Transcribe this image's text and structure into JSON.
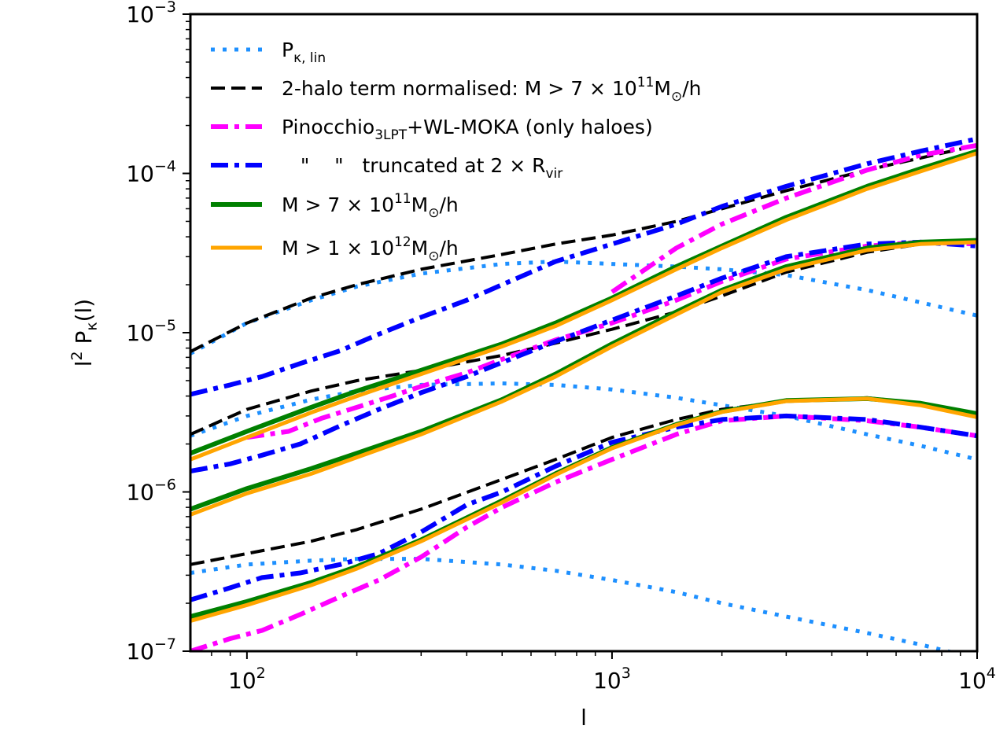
{
  "chart_data": {
    "type": "line",
    "xscale": "log",
    "yscale": "log",
    "xlim": [
      70,
      10000
    ],
    "ylim": [
      1e-07,
      0.001
    ],
    "grid": false,
    "legend_position": "top-left",
    "xlabel": "l",
    "ylabel": {
      "base": "l",
      "sup": "2",
      "mid": " P",
      "sub": "κ",
      "tail": "(l)"
    },
    "x_ticks": [
      {
        "value": 100,
        "base": "10",
        "exp": "2"
      },
      {
        "value": 1000,
        "base": "10",
        "exp": "3"
      },
      {
        "value": 10000,
        "base": "10",
        "exp": "4"
      }
    ],
    "y_ticks": [
      {
        "value": 1e-07,
        "base": "10",
        "exp": "−7"
      },
      {
        "value": 1e-06,
        "base": "10",
        "exp": "−6"
      },
      {
        "value": 1e-05,
        "base": "10",
        "exp": "−5"
      },
      {
        "value": 0.0001,
        "base": "10",
        "exp": "−4"
      },
      {
        "value": 0.001,
        "base": "10",
        "exp": "−3"
      }
    ],
    "legend": [
      {
        "key": "lin",
        "parts": [
          {
            "t": "P"
          },
          {
            "t": "κ, lin",
            "sub": true
          }
        ]
      },
      {
        "key": "twohalo",
        "parts": [
          {
            "t": "2-halo term normalised: M > 7 × 10"
          },
          {
            "t": "11",
            "sup": true
          },
          {
            "t": "M"
          },
          {
            "t": "⊙",
            "sub": true
          },
          {
            "t": "/h"
          }
        ]
      },
      {
        "key": "pino",
        "parts": [
          {
            "t": "Pinocchio"
          },
          {
            "t": "3LPT",
            "sub": true
          },
          {
            "t": "+WL-MOKA (only haloes)"
          }
        ]
      },
      {
        "key": "trunc",
        "parts": [
          {
            "t": "   \"    \"   truncated at 2 × R"
          },
          {
            "t": "vir",
            "sub": true
          }
        ]
      },
      {
        "key": "m7",
        "parts": [
          {
            "t": "M > 7 × 10"
          },
          {
            "t": "11",
            "sup": true
          },
          {
            "t": "M"
          },
          {
            "t": "⊙",
            "sub": true
          },
          {
            "t": "/h"
          }
        ]
      },
      {
        "key": "m1",
        "parts": [
          {
            "t": "M > 1 × 10"
          },
          {
            "t": "12",
            "sup": true
          },
          {
            "t": "M"
          },
          {
            "t": "⊙",
            "sub": true
          },
          {
            "t": "/h"
          }
        ]
      }
    ],
    "styles": {
      "lin": {
        "color": "#1e90ff",
        "width": 5,
        "dash": "5 10",
        "cap": "butt"
      },
      "twohalo": {
        "color": "#000000",
        "width": 4,
        "dash": "18 8",
        "cap": "butt"
      },
      "pino": {
        "color": "#ff00ff",
        "width": 6,
        "dash": "22 8 6 8",
        "cap": "butt"
      },
      "trunc": {
        "color": "#0000ff",
        "width": 6,
        "dash": "22 8 6 8",
        "cap": "butt"
      },
      "m7": {
        "color": "#008000",
        "width": 6,
        "dash": "",
        "cap": "butt"
      },
      "m1": {
        "color": "#ffa500",
        "width": 5,
        "dash": "",
        "cap": "butt"
      }
    },
    "series": [
      {
        "group": "upper",
        "key": "lin",
        "x": [
          70,
          100,
          150,
          200,
          300,
          500,
          700,
          1000,
          1500,
          2000,
          3000,
          5000,
          7000,
          10000
        ],
        "y": [
          7.4e-06,
          1.15e-05,
          1.6e-05,
          1.95e-05,
          2.35e-05,
          2.7e-05,
          2.8e-05,
          2.7e-05,
          2.6e-05,
          2.5e-05,
          2.3e-05,
          1.85e-05,
          1.55e-05,
          1.28e-05
        ]
      },
      {
        "group": "upper",
        "key": "twohalo",
        "x": [
          70,
          100,
          150,
          200,
          300,
          500,
          700,
          1000,
          1500,
          2000,
          3000,
          5000,
          7000,
          10000
        ],
        "y": [
          7.6e-06,
          1.15e-05,
          1.65e-05,
          2e-05,
          2.5e-05,
          3.1e-05,
          3.6e-05,
          4.1e-05,
          5e-05,
          6e-05,
          7.8e-05,
          0.000105,
          0.000125,
          0.00015
        ]
      },
      {
        "group": "upper",
        "key": "trunc",
        "x": [
          70,
          90,
          110,
          140,
          180,
          230,
          300,
          400,
          500,
          700,
          1000,
          1500,
          2000,
          3000,
          5000,
          7000,
          10000
        ],
        "y": [
          4.1e-06,
          4.7e-06,
          5.3e-06,
          6.4e-06,
          7.7e-06,
          9.8e-06,
          1.25e-05,
          1.6e-05,
          2e-05,
          2.8e-05,
          3.6e-05,
          4.8e-05,
          6.2e-05,
          8.3e-05,
          0.000115,
          0.000138,
          0.000165
        ]
      },
      {
        "group": "upper",
        "key": "pino",
        "x": [
          1000,
          1500,
          2000,
          3000,
          5000,
          7000,
          10000
        ],
        "y": [
          1.8e-05,
          3.4e-05,
          4.8e-05,
          7e-05,
          0.000105,
          0.00013,
          0.00015
        ]
      },
      {
        "group": "upper",
        "key": "m7",
        "x": [
          70,
          100,
          150,
          200,
          300,
          500,
          700,
          1000,
          1500,
          2000,
          3000,
          5000,
          7000,
          10000
        ],
        "y": [
          1.75e-06,
          2.4e-06,
          3.4e-06,
          4.3e-06,
          5.8e-06,
          8.5e-06,
          1.15e-05,
          1.65e-05,
          2.6e-05,
          3.5e-05,
          5.3e-05,
          8.3e-05,
          0.000107,
          0.000138
        ]
      },
      {
        "group": "upper",
        "key": "m1",
        "x": [
          70,
          100,
          150,
          200,
          300,
          500,
          700,
          1000,
          1500,
          2000,
          3000,
          5000,
          7000,
          10000
        ],
        "y": [
          1.6e-06,
          2.2e-06,
          3.15e-06,
          4e-06,
          5.5e-06,
          8.2e-06,
          1.1e-05,
          1.6e-05,
          2.5e-05,
          3.4e-05,
          5.1e-05,
          8e-05,
          0.000103,
          0.000134
        ]
      },
      {
        "group": "middle",
        "key": "lin",
        "x": [
          70,
          100,
          150,
          200,
          300,
          500,
          700,
          1000,
          1500,
          2000,
          3000,
          5000,
          7000,
          10000
        ],
        "y": [
          2.25e-06,
          3e-06,
          3.8e-06,
          4.3e-06,
          4.7e-06,
          4.8e-06,
          4.7e-06,
          4.4e-06,
          3.9e-06,
          3.5e-06,
          3e-06,
          2.3e-06,
          1.95e-06,
          1.6e-06
        ]
      },
      {
        "group": "middle",
        "key": "twohalo",
        "x": [
          70,
          100,
          150,
          200,
          300,
          500,
          700,
          1000,
          1500,
          2000,
          3000,
          5000,
          7000,
          10000
        ],
        "y": [
          2.3e-06,
          3.3e-06,
          4.3e-06,
          5e-06,
          5.8e-06,
          7.2e-06,
          8.6e-06,
          1.05e-05,
          1.35e-05,
          1.7e-05,
          2.4e-05,
          3.2e-05,
          3.6e-05,
          3.7e-05
        ]
      },
      {
        "group": "middle",
        "key": "trunc",
        "x": [
          70,
          90,
          110,
          140,
          180,
          230,
          300,
          400,
          500,
          700,
          1000,
          1500,
          2000,
          3000,
          5000,
          7000,
          10000
        ],
        "y": [
          1.35e-06,
          1.5e-06,
          1.7e-06,
          2e-06,
          2.6e-06,
          3.3e-06,
          4.2e-06,
          5.3e-06,
          6.5e-06,
          8.8e-06,
          1.2e-05,
          1.7e-05,
          2.2e-05,
          3e-05,
          3.6e-05,
          3.7e-05,
          3.5e-05
        ]
      },
      {
        "group": "middle",
        "key": "pino",
        "x": [
          100,
          130,
          160,
          200,
          250,
          300,
          400,
          500,
          700,
          1000,
          1500,
          2000,
          3000,
          5000,
          7000,
          10000
        ],
        "y": [
          2.2e-06,
          2.4e-06,
          2.9e-06,
          3.4e-06,
          4e-06,
          4.6e-06,
          5.6e-06,
          6.8e-06,
          9e-06,
          1.15e-05,
          1.6e-05,
          2.1e-05,
          2.9e-05,
          3.5e-05,
          3.7e-05,
          3.6e-05
        ]
      },
      {
        "group": "middle",
        "key": "m7",
        "x": [
          70,
          100,
          150,
          200,
          300,
          500,
          700,
          1000,
          1500,
          2000,
          3000,
          5000,
          7000,
          10000
        ],
        "y": [
          7.8e-07,
          1.05e-06,
          1.4e-06,
          1.75e-06,
          2.4e-06,
          3.8e-06,
          5.5e-06,
          8.5e-06,
          1.35e-05,
          1.85e-05,
          2.6e-05,
          3.4e-05,
          3.7e-05,
          3.8e-05
        ]
      },
      {
        "group": "middle",
        "key": "m1",
        "x": [
          70,
          100,
          150,
          200,
          300,
          500,
          700,
          1000,
          1500,
          2000,
          3000,
          5000,
          7000,
          10000
        ],
        "y": [
          7.2e-07,
          9.8e-07,
          1.3e-06,
          1.65e-06,
          2.3e-06,
          3.7e-06,
          5.3e-06,
          8.2e-06,
          1.3e-05,
          1.8e-05,
          2.5e-05,
          3.3e-05,
          3.6e-05,
          3.7e-05
        ]
      },
      {
        "group": "lower",
        "key": "lin",
        "x": [
          70,
          100,
          150,
          200,
          300,
          500,
          700,
          1000,
          1500,
          2000,
          3000,
          5000,
          7000,
          10000
        ],
        "y": [
          3.1e-07,
          3.5e-07,
          3.7e-07,
          3.8e-07,
          3.8e-07,
          3.5e-07,
          3.2e-07,
          2.8e-07,
          2.35e-07,
          2e-07,
          1.65e-07,
          1.3e-07,
          1.1e-07,
          9e-08
        ]
      },
      {
        "group": "lower",
        "key": "twohalo",
        "x": [
          70,
          100,
          150,
          200,
          300,
          500,
          700,
          1000,
          1500,
          2000,
          3000,
          5000,
          7000,
          10000
        ],
        "y": [
          3.5e-07,
          4.1e-07,
          4.9e-07,
          5.8e-07,
          7.8e-07,
          1.2e-06,
          1.6e-06,
          2.2e-06,
          2.85e-06,
          3.3e-06,
          3.7e-06,
          3.9e-06,
          3.6e-06,
          3.1e-06
        ]
      },
      {
        "group": "lower",
        "key": "trunc",
        "x": [
          70,
          90,
          110,
          140,
          180,
          230,
          300,
          400,
          500,
          700,
          1000,
          1500,
          2000,
          3000,
          5000,
          7000,
          10000
        ],
        "y": [
          2.1e-07,
          2.5e-07,
          2.9e-07,
          3.1e-07,
          3.5e-07,
          4.1e-07,
          5.6e-07,
          8.3e-07,
          1e-06,
          1.45e-06,
          2.05e-06,
          2.55e-06,
          2.85e-06,
          3e-06,
          2.85e-06,
          2.55e-06,
          2.25e-06
        ]
      },
      {
        "group": "lower",
        "key": "pino",
        "x": [
          70,
          90,
          110,
          140,
          180,
          230,
          300,
          400,
          500,
          700,
          1000,
          1500,
          2000,
          3000,
          5000,
          7000,
          10000
        ],
        "y": [
          1e-07,
          1.2e-07,
          1.35e-07,
          1.7e-07,
          2.2e-07,
          2.8e-07,
          3.9e-07,
          6e-07,
          8e-07,
          1.15e-06,
          1.6e-06,
          2.3e-06,
          2.8e-06,
          3e-06,
          2.8e-06,
          2.55e-06,
          2.25e-06
        ]
      },
      {
        "group": "lower",
        "key": "m7",
        "x": [
          70,
          100,
          150,
          200,
          300,
          500,
          700,
          1000,
          1500,
          2000,
          3000,
          5000,
          7000,
          10000
        ],
        "y": [
          1.65e-07,
          2.05e-07,
          2.7e-07,
          3.4e-07,
          5e-07,
          8.8e-07,
          1.3e-06,
          1.9e-06,
          2.65e-06,
          3.2e-06,
          3.75e-06,
          3.85e-06,
          3.6e-06,
          3.1e-06
        ]
      },
      {
        "group": "lower",
        "key": "m1",
        "x": [
          70,
          100,
          150,
          200,
          300,
          500,
          700,
          1000,
          1500,
          2000,
          3000,
          5000,
          7000,
          10000
        ],
        "y": [
          1.55e-07,
          1.95e-07,
          2.6e-07,
          3.3e-07,
          4.9e-07,
          8.6e-07,
          1.28e-06,
          1.88e-06,
          2.63e-06,
          3.18e-06,
          3.72e-06,
          3.85e-06,
          3.5e-06,
          2.95e-06
        ]
      }
    ]
  }
}
